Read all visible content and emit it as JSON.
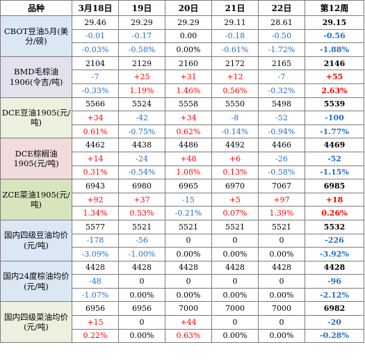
{
  "header": [
    "品种",
    "3月18日",
    "19日",
    "20日",
    "21日",
    "22日",
    "第12周"
  ],
  "groups": [
    {
      "label": "CBOT豆油5月(美分/磅)",
      "price": [
        "29.46",
        "29.29",
        "29.29",
        "29.11",
        "28.61",
        "29.15"
      ],
      "change": [
        "-0.01",
        "-0.17",
        "0.00",
        "-0.18",
        "-0.50",
        "-0.56"
      ],
      "pct": [
        "-0.03%",
        "-0.58%",
        "0.00%",
        "-0.61%",
        "-1.72%",
        "-1.88%"
      ]
    },
    {
      "label": "BMD毛棕油1906(令吉/吨)",
      "price": [
        "2104",
        "2129",
        "2160",
        "2172",
        "2165",
        "2146"
      ],
      "change": [
        "-7",
        "+25",
        "+31",
        "+12",
        "-7",
        "+55"
      ],
      "pct": [
        "-0.33%",
        "1.19%",
        "1.46%",
        "0.56%",
        "-0.32%",
        "2.63%"
      ]
    },
    {
      "label": "DCE豆油1905(元/吨)",
      "price": [
        "5566",
        "5524",
        "5558",
        "5550",
        "5498",
        "5539"
      ],
      "change": [
        "+34",
        "-42",
        "+34",
        "-8",
        "-52",
        "-100"
      ],
      "pct": [
        "0.61%",
        "-0.75%",
        "0.62%",
        "-0.14%",
        "-0.94%",
        "-1.77%"
      ]
    },
    {
      "label": "DCE棕榈油1905(元/吨)",
      "price": [
        "4462",
        "4438",
        "4486",
        "4492",
        "4466",
        "4469"
      ],
      "change": [
        "+14",
        "-24",
        "+48",
        "+6",
        "-26",
        "-52"
      ],
      "pct": [
        "0.31%",
        "-0.54%",
        "1.08%",
        "0.13%",
        "-0.58%",
        "-1.15%"
      ]
    },
    {
      "label": "ZCE菜油1905(元/吨)",
      "price": [
        "6943",
        "6980",
        "6965",
        "6970",
        "7067",
        "6985"
      ],
      "change": [
        "+92",
        "+37",
        "-15",
        "+5",
        "+97",
        "+18"
      ],
      "pct": [
        "1.34%",
        "0.53%",
        "-0.21%",
        "0.07%",
        "1.39%",
        "0.26%"
      ]
    },
    {
      "label": "国内四级豆油均价(元/吨)",
      "price": [
        "5577",
        "5521",
        "5521",
        "5521",
        "5521",
        "5532"
      ],
      "change": [
        "-178",
        "-56",
        "0",
        "0",
        "0",
        "-226"
      ],
      "pct": [
        "-3.09%",
        "-1.00%",
        "0.00%",
        "0.00%",
        "0.00%",
        "-3.92%"
      ]
    },
    {
      "label": "国内24度棕油均价(元/吨)",
      "price": [
        "4428",
        "4428",
        "4428",
        "4428",
        "4428",
        "4428"
      ],
      "change": [
        "-48",
        "0",
        "0",
        "0",
        "0",
        "-96"
      ],
      "pct": [
        "-1.07%",
        "0.00%",
        "0.00%",
        "0.00%",
        "0.00%",
        "-2.12%"
      ]
    },
    {
      "label": "国内四级菜油均价(元/吨)",
      "price": [
        "6956",
        "6956",
        "7000",
        "7000",
        "7000",
        "6982"
      ],
      "change": [
        "+15",
        "0",
        "+44",
        "0",
        "0",
        "-20"
      ],
      "pct": [
        "0.22%",
        "0.00%",
        "0.63%",
        "0.00%",
        "0.00%",
        "-0.28%"
      ]
    }
  ]
}
